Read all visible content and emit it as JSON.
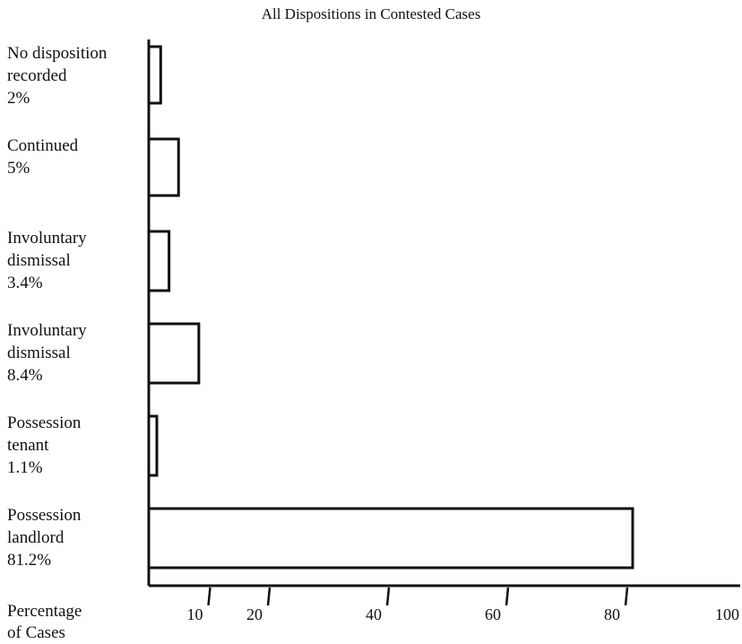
{
  "chart_data": {
    "type": "bar",
    "orientation": "horizontal",
    "title": "All Dispositions in Contested Cases",
    "xlabel": "Percentage\nof Cases",
    "ylabel": "",
    "categories": [
      "No disposition\nrecorded",
      "Continued",
      "Involuntary\ndismissal",
      "Involuntary\ndismissal",
      "Possession\ntenant",
      "Possession\nlandlord"
    ],
    "value_labels": [
      "2%",
      "5%",
      "3.4%",
      "8.4%",
      "1.1%",
      "81.2%"
    ],
    "values": [
      2,
      5,
      3.4,
      8.4,
      1.1,
      81.2
    ],
    "xlim": [
      0,
      100
    ],
    "xticks": [
      10,
      20,
      40,
      60,
      80,
      100
    ],
    "grid": false,
    "legend": "none",
    "bar_fill": "#ffffff",
    "bar_stroke": "#111111"
  }
}
